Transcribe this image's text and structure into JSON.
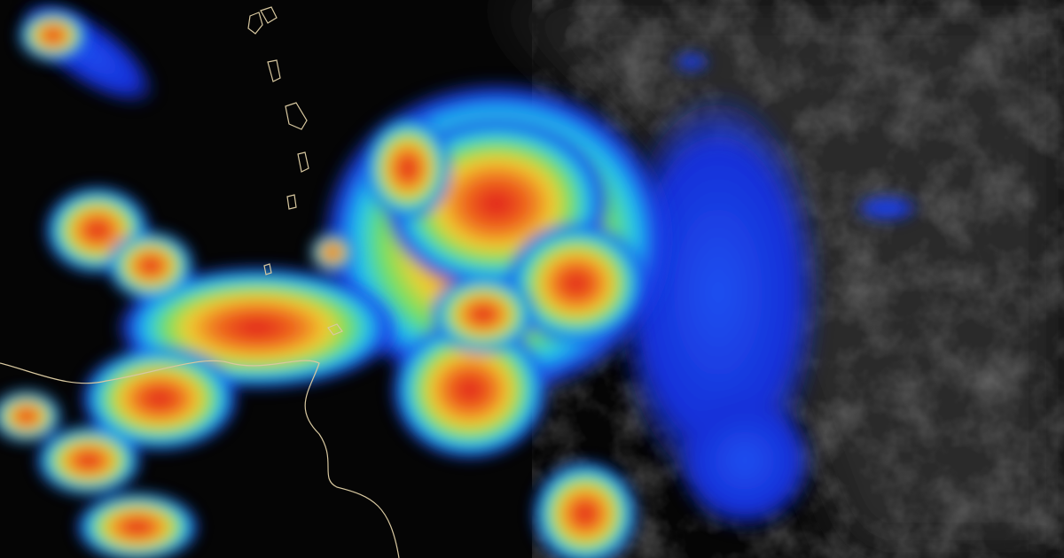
{
  "image": {
    "subject": "satellite-infrared-hurricane",
    "palette": {
      "ocean_dark": "#050505",
      "cloud_gray": "#3a3a3a",
      "cold_blue": "#1530e0",
      "cyan": "#20d0f0",
      "green": "#60e060",
      "yellow": "#f0e030",
      "orange": "#f08020",
      "red": "#e02020",
      "coastline": "#d8c8a0"
    }
  }
}
